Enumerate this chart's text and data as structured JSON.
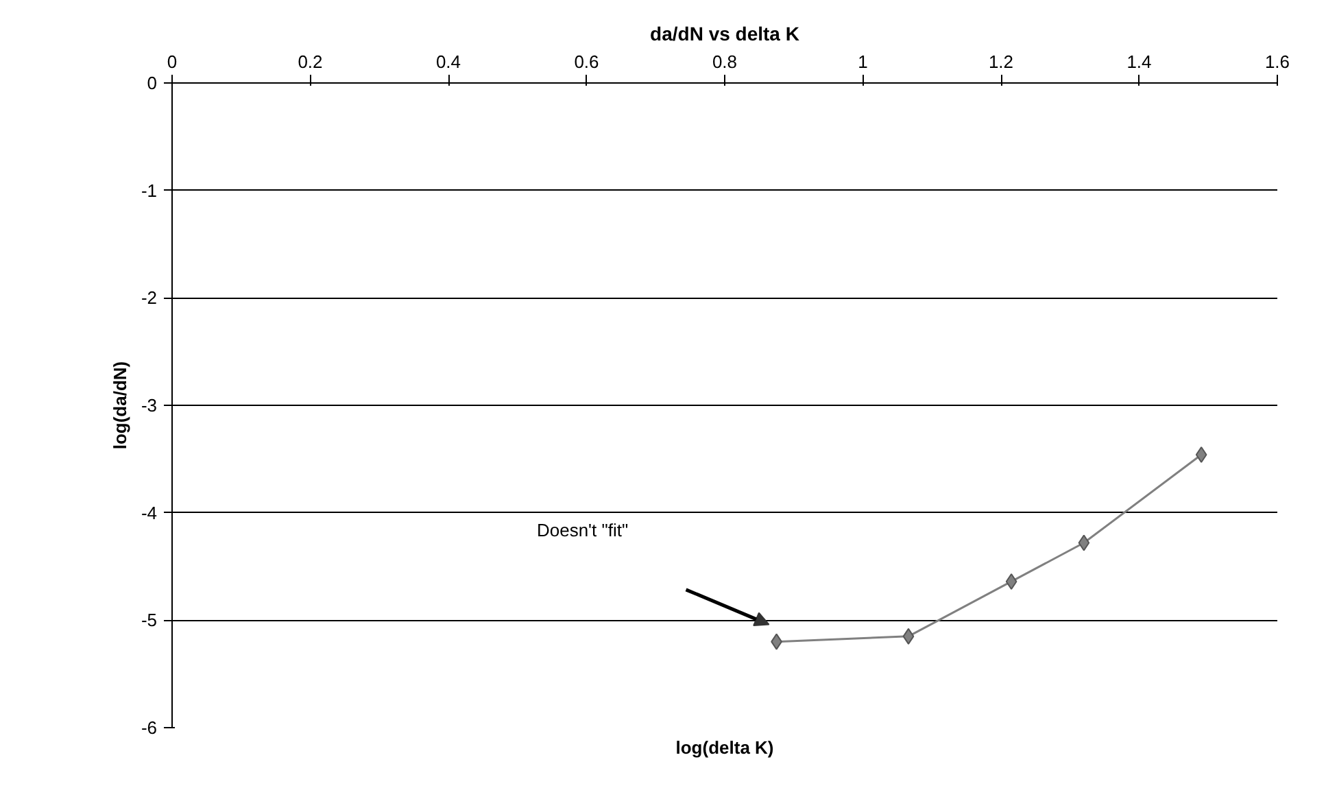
{
  "chart_data": {
    "type": "line",
    "title": "da/dN vs delta K",
    "xlabel": "log(delta K)",
    "ylabel": "log(da/dN)",
    "x": [
      0.875,
      1.066,
      1.215,
      1.32,
      1.49
    ],
    "series": [
      {
        "color": "#808080",
        "values": [
          -5.2,
          -5.15,
          -4.64,
          -4.28,
          -3.46
        ]
      }
    ],
    "xlim": [
      0,
      1.6
    ],
    "xticks": [
      0,
      0.2,
      0.4,
      0.6,
      0.8,
      1,
      1.2,
      1.4,
      1.6
    ],
    "ylim": [
      -6,
      0
    ],
    "yticks": [
      -6,
      -5,
      -4,
      -3,
      -2,
      -1,
      0
    ],
    "grid": "y",
    "marker": "diamond",
    "line_style": "solid",
    "annotations": [
      "Doesn't \"fit\""
    ]
  }
}
